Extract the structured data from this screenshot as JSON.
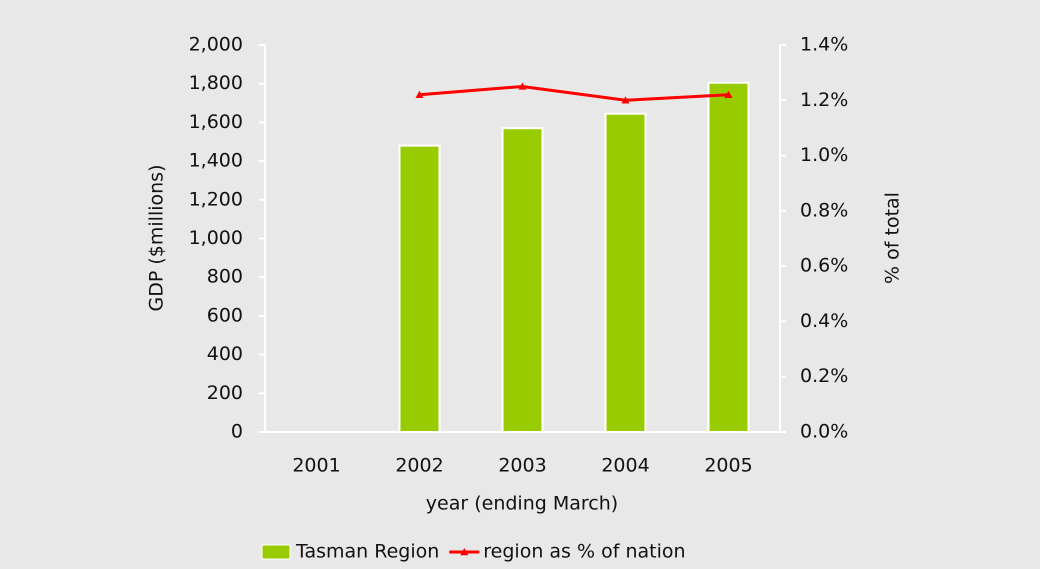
{
  "chart_data": {
    "type": "bar",
    "categories": [
      "2001",
      "2002",
      "2003",
      "2004",
      "2005"
    ],
    "series": [
      {
        "name": "Tasman Region",
        "color": "#99cc00",
        "type": "bar",
        "values": [
          null,
          1480,
          1570,
          1645,
          1805
        ]
      },
      {
        "name": "region as % of nation",
        "color": "#ff0000",
        "type": "line",
        "axis": "y2",
        "values": [
          null,
          1.22,
          1.25,
          1.2,
          1.22
        ]
      }
    ],
    "xlabel": "year (ending March)",
    "ylabel": "GDP ($millions)",
    "y2label": "% of total",
    "ylim": [
      0,
      2000
    ],
    "yticks": [
      0,
      200,
      400,
      600,
      800,
      {
        "value": 1000,
        "label": "1,000"
      },
      {
        "value": 1200,
        "label": "1,200"
      },
      {
        "value": 1400,
        "label": "1,400"
      },
      {
        "value": 1600,
        "label": "1,600"
      },
      {
        "value": 1800,
        "label": "1,800"
      },
      {
        "value": 2000,
        "label": "2,000"
      }
    ],
    "y2lim": [
      0,
      1.4
    ],
    "y2ticks": [
      {
        "value": 0,
        "label": "0.0%"
      },
      {
        "value": 0.2,
        "label": "0.2%"
      },
      {
        "value": 0.4,
        "label": "0.4%"
      },
      {
        "value": 0.6,
        "label": "0.6%"
      },
      {
        "value": 0.8,
        "label": "0.8%"
      },
      {
        "value": 1.0,
        "label": "1.0%"
      },
      {
        "value": 1.2,
        "label": "1.2%"
      },
      {
        "value": 1.4,
        "label": "1.4%"
      }
    ],
    "legend": "bottom"
  }
}
